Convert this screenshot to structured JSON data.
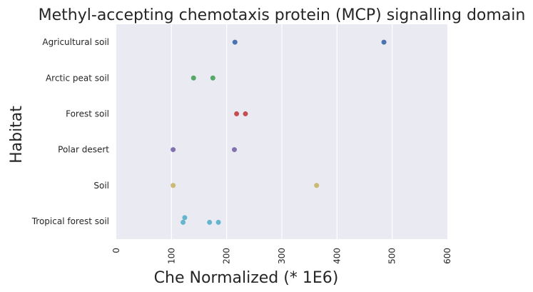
{
  "chart_data": {
    "type": "scatter",
    "title": "Methyl-accepting chemotaxis protein (MCP) signalling domain",
    "xlabel": "Che Normalized (* 1E6)",
    "ylabel": "Habitat",
    "xlim": [
      0,
      600
    ],
    "xticks": [
      "0",
      "100",
      "200",
      "300",
      "400",
      "500",
      "600"
    ],
    "grid": true,
    "categories": [
      "Agricultural soil",
      "Arctic peat soil",
      "Forest soil",
      "Polar desert",
      "Soil",
      "Tropical forest soil"
    ],
    "series": [
      {
        "category": "Agricultural soil",
        "color": "#4c72b0",
        "points": [
          {
            "x": 215,
            "y": 0
          },
          {
            "x": 485,
            "y": 0
          }
        ]
      },
      {
        "category": "Arctic peat soil",
        "color": "#55a868",
        "points": [
          {
            "x": 140,
            "y": 0
          },
          {
            "x": 175,
            "y": 0
          }
        ]
      },
      {
        "category": "Forest soil",
        "color": "#c44e52",
        "points": [
          {
            "x": 218,
            "y": 0
          },
          {
            "x": 234,
            "y": 0
          }
        ]
      },
      {
        "category": "Polar desert",
        "color": "#8172b2",
        "points": [
          {
            "x": 103,
            "y": 0
          },
          {
            "x": 214,
            "y": 0
          }
        ]
      },
      {
        "category": "Soil",
        "color": "#ccb974",
        "points": [
          {
            "x": 103,
            "y": 0
          },
          {
            "x": 363,
            "y": 0
          }
        ]
      },
      {
        "category": "Tropical forest soil",
        "color": "#64b5cd",
        "points": [
          {
            "x": 124,
            "y": -0.1
          },
          {
            "x": 121,
            "y": 0.03
          },
          {
            "x": 169,
            "y": 0.03
          },
          {
            "x": 185,
            "y": 0.03
          }
        ]
      }
    ]
  }
}
